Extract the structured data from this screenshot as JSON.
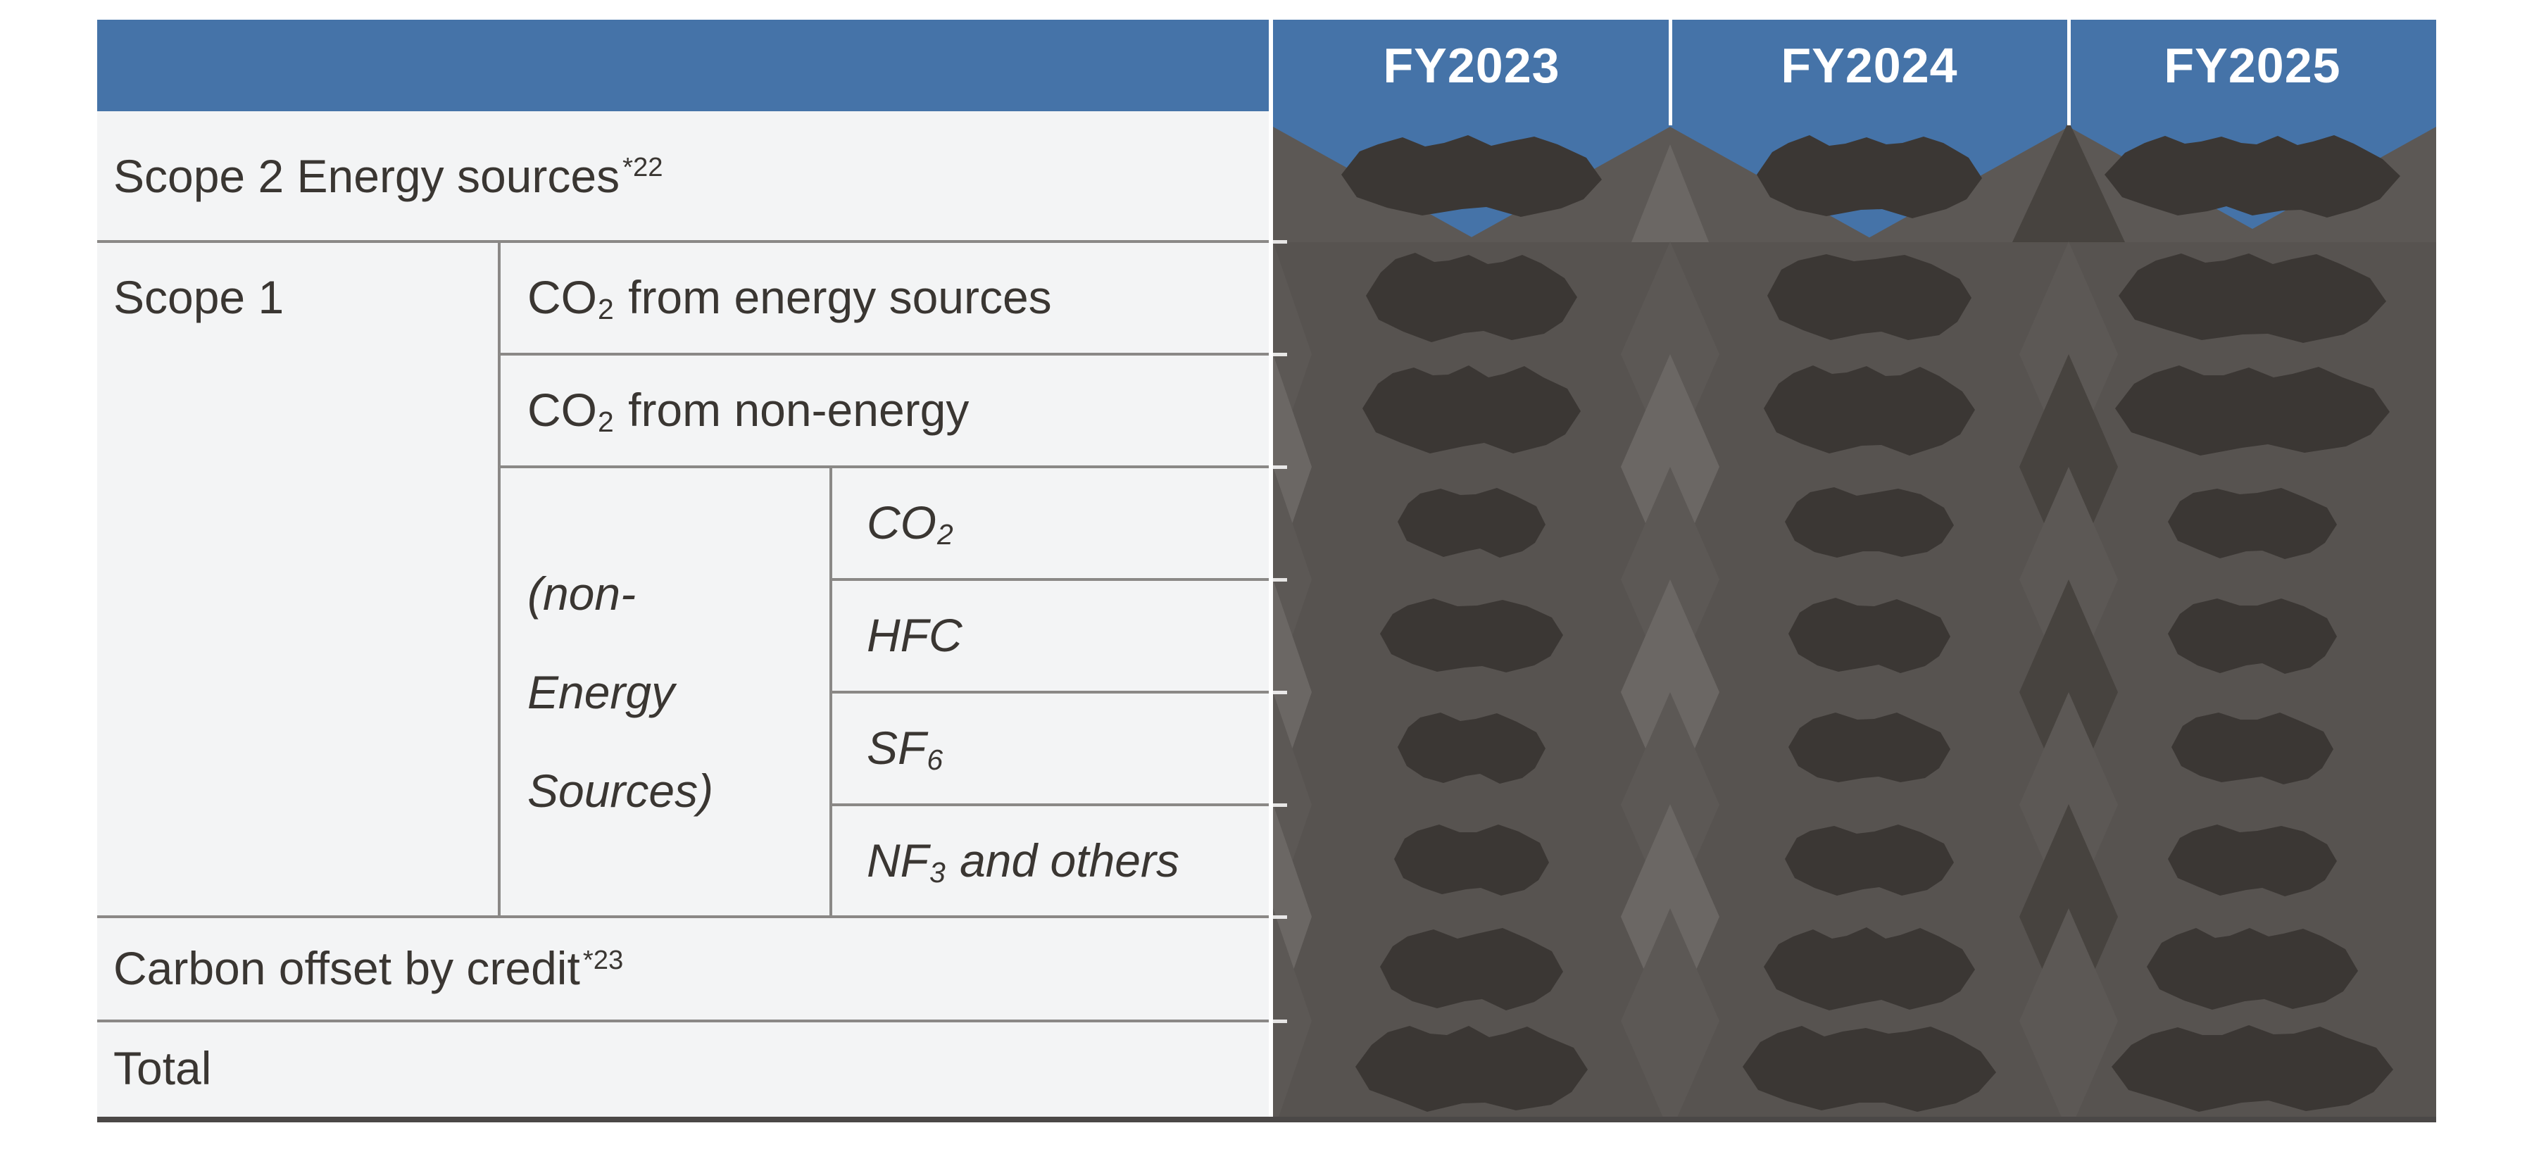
{
  "table": {
    "title_hidden": "",
    "columns": [
      "FY2023",
      "FY2024",
      "FY2025"
    ],
    "rows": {
      "scope2": {
        "text": "Scope 2 Energy sources",
        "sup": "*22"
      },
      "scope1": {
        "text": "Scope 1"
      },
      "co2_energy": {
        "pre": "CO",
        "sub": "2",
        "post": " from energy sources"
      },
      "co2_non_energy": {
        "pre": "CO",
        "sub": "2",
        "post": " from non-energy"
      },
      "non_energy_group": {
        "text": "(non-\nEnergy\nSources)"
      },
      "gas_co2": {
        "pre": "CO",
        "sub": "2",
        "post": ""
      },
      "gas_hfc": {
        "pre": "HFC",
        "sub": "",
        "post": ""
      },
      "gas_sf6": {
        "pre": "SF",
        "sub": "6",
        "post": ""
      },
      "gas_nf3": {
        "pre": "NF",
        "sub": "3",
        "post": " and others"
      },
      "carbon_offset": {
        "text": "Carbon offset by credit",
        "sup": "*23"
      },
      "total": {
        "text": "Total"
      }
    },
    "data_cells_obscured": true
  },
  "colors": {
    "header_blue": "#4573A8",
    "header_text": "#FFFFFF",
    "label_bg": "#F3F4F5",
    "label_text": "#3A3632",
    "grid_line": "#8A8886",
    "bottom_border": "#4B4847",
    "redaction_bg": "#575350",
    "redaction_blob": "#3B3734",
    "redaction_light": "#6B6764",
    "redaction_mid": "#5C5855",
    "redaction_dark": "#47433F",
    "separator_white": "#FFFFFF"
  }
}
